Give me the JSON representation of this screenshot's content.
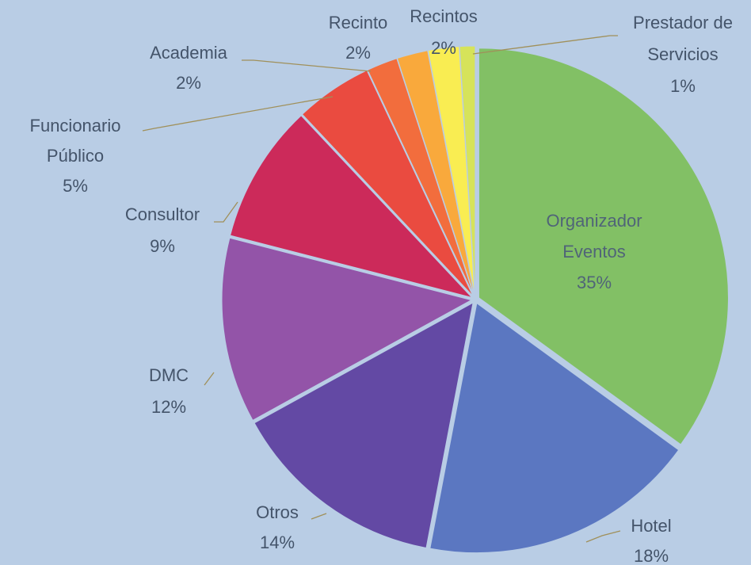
{
  "chart_data": {
    "type": "pie",
    "categories": [
      "Organizador Eventos",
      "Hotel",
      "Otros",
      "DMC",
      "Consultor",
      "Funcionario Público",
      "Academia",
      "Recinto",
      "Recintos",
      "Prestador de Servicios"
    ],
    "values": [
      35,
      18,
      14,
      12,
      9,
      5,
      2,
      2,
      2,
      1
    ],
    "value_labels": [
      "35%",
      "18%",
      "14%",
      "12%",
      "9%",
      "5%",
      "2%",
      "2%",
      "2%",
      "1%"
    ],
    "colors": [
      "#82c065",
      "#5b77c1",
      "#6349a4",
      "#9354a8",
      "#cc2a5a",
      "#ea4b40",
      "#f26d3d",
      "#f9a93c",
      "#f9ed52",
      "#d6e35a"
    ]
  }
}
